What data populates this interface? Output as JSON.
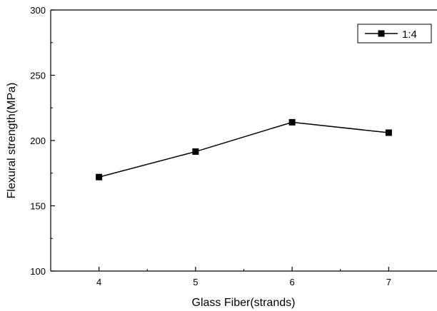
{
  "chart_data": {
    "type": "line",
    "xlabel": "Glass Fiber(strands)",
    "ylabel": "Flexural strength(MPa)",
    "x": [
      4,
      5,
      6,
      7
    ],
    "x_ticks": [
      "4",
      "5",
      "6",
      "7"
    ],
    "xlim": [
      3.5,
      7.5
    ],
    "ylim": [
      100,
      300
    ],
    "y_ticks": [
      "100",
      "150",
      "200",
      "250",
      "300"
    ],
    "series": [
      {
        "name": "1:4",
        "values": [
          172,
          191.5,
          214,
          206
        ],
        "marker": "square",
        "color": "#000000"
      }
    ],
    "legend_position": "top-right",
    "grid": false
  }
}
